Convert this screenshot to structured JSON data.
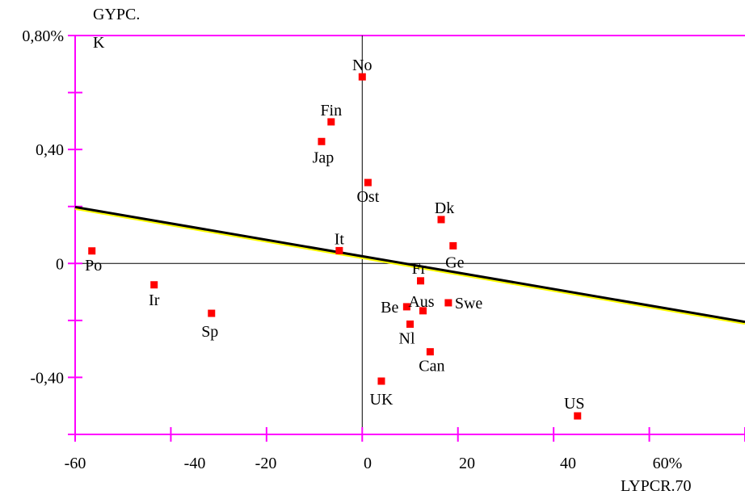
{
  "chart_data": {
    "type": "scatter",
    "ylabel_lines": [
      "GYPC.",
      "K"
    ],
    "xlabel": "LYPCR.70",
    "xlim": [
      -60,
      80
    ],
    "ylim": [
      -0.6,
      0.8
    ],
    "x_ticks": [
      {
        "value": -60,
        "label": "-60"
      },
      {
        "value": -40,
        "label": "-40"
      },
      {
        "value": -20,
        "label": "-20"
      },
      {
        "value": 0,
        "label": "0"
      },
      {
        "value": 20,
        "label": "20"
      },
      {
        "value": 40,
        "label": "40"
      },
      {
        "value": 60,
        "label": "60%"
      }
    ],
    "y_ticks": [
      {
        "value": 0.8,
        "label": "0,80%"
      },
      {
        "value": 0.4,
        "label": "0,40"
      },
      {
        "value": 0,
        "label": "0"
      },
      {
        "value": -0.4,
        "label": "-0,40"
      }
    ],
    "points": [
      {
        "label": "No",
        "x": 0,
        "y": 0.655
      },
      {
        "label": "Fin",
        "x": -6.5,
        "y": 0.497
      },
      {
        "label": "Jap",
        "x": -8.5,
        "y": 0.428
      },
      {
        "label": "Ost",
        "x": 1.2,
        "y": 0.284
      },
      {
        "label": "Dk",
        "x": 16.5,
        "y": 0.154
      },
      {
        "label": "Ge",
        "x": 19,
        "y": 0.062
      },
      {
        "label": "It",
        "x": -4.8,
        "y": 0.045
      },
      {
        "label": "Po",
        "x": -56.5,
        "y": 0.044
      },
      {
        "label": "Fr",
        "x": 12.2,
        "y": -0.061
      },
      {
        "label": "Ir",
        "x": -43.5,
        "y": -0.075
      },
      {
        "label": "Swe",
        "x": 18,
        "y": -0.138
      },
      {
        "label": "Be",
        "x": 9.3,
        "y": -0.152
      },
      {
        "label": "Aus",
        "x": 12.7,
        "y": -0.166
      },
      {
        "label": "Sp",
        "x": -31.5,
        "y": -0.175
      },
      {
        "label": "Nl",
        "x": 10,
        "y": -0.213
      },
      {
        "label": "Can",
        "x": 14.2,
        "y": -0.31
      },
      {
        "label": "UK",
        "x": 4,
        "y": -0.413
      },
      {
        "label": "US",
        "x": 45,
        "y": -0.535
      }
    ],
    "regression": {
      "x": [
        -60,
        80
      ],
      "y": [
        0.198,
        -0.205
      ]
    },
    "colors": {
      "frame": "#ff00ff",
      "point": "#ff0000",
      "line": "#000000",
      "line_shadow": "#ffff00",
      "zero_axes": "#000000"
    }
  }
}
